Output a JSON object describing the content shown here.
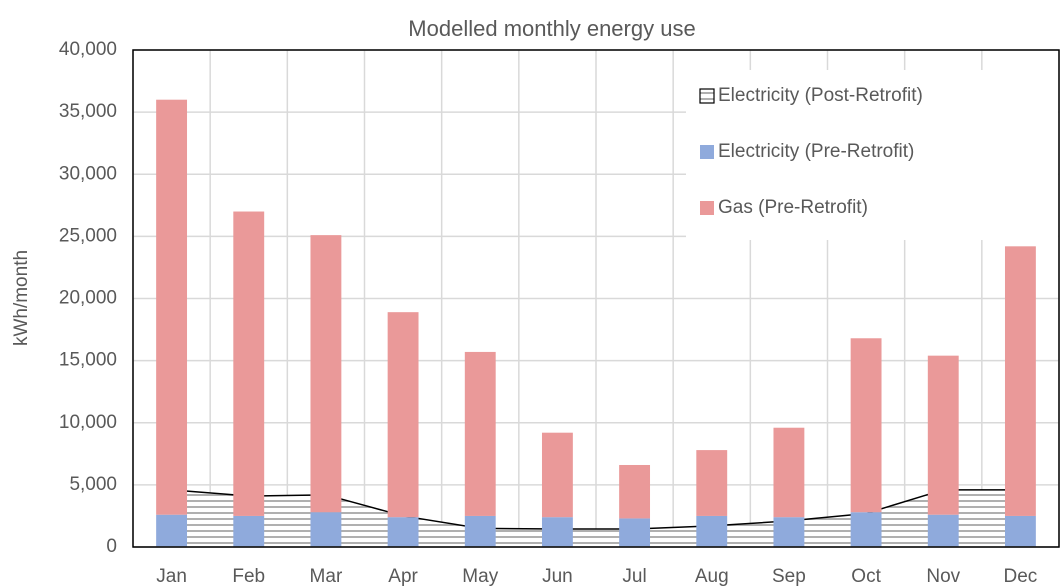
{
  "chart_data": {
    "type": "bar",
    "stacked": true,
    "title": "Modelled monthly energy use",
    "y_label": "kWh/month",
    "categories": [
      "Jan",
      "Feb",
      "Mar",
      "Apr",
      "May",
      "Jun",
      "Jul",
      "Aug",
      "Sep",
      "Oct",
      "Nov",
      "Dec"
    ],
    "series": [
      {
        "name": "Electricity (Post-Retrofit)",
        "type": "area",
        "color": "#000000",
        "values": [
          4600,
          4100,
          4200,
          2500,
          1500,
          1450,
          1450,
          1700,
          2100,
          2700,
          4600,
          4600
        ]
      },
      {
        "name": "Electricity (Pre-Retrofit)",
        "type": "bar",
        "color": "#8faadc",
        "values": [
          2600,
          2500,
          2800,
          2400,
          2500,
          2400,
          2300,
          2500,
          2400,
          2800,
          2600,
          2500
        ]
      },
      {
        "name": "Gas (Pre-Retrofit)",
        "type": "bar",
        "color": "#ea9999",
        "values": [
          33400,
          24500,
          22300,
          16500,
          13200,
          6800,
          4300,
          5300,
          7200,
          14000,
          12800,
          21700
        ]
      }
    ],
    "ylim": [
      0,
      40000
    ],
    "yticks": [
      0,
      {
        "value": 5000,
        "label": "5,000"
      },
      {
        "value": 10000,
        "label": "10,000"
      },
      {
        "value": 15000,
        "label": "15,000"
      },
      {
        "value": 20000,
        "label": "20,000"
      },
      {
        "value": 25000,
        "label": "25,000"
      },
      {
        "value": 30000,
        "label": "30,000"
      },
      {
        "value": 35000,
        "label": "35,000"
      },
      {
        "value": 40000,
        "label": "40,000"
      }
    ],
    "grid": true,
    "legend": "top-right"
  }
}
